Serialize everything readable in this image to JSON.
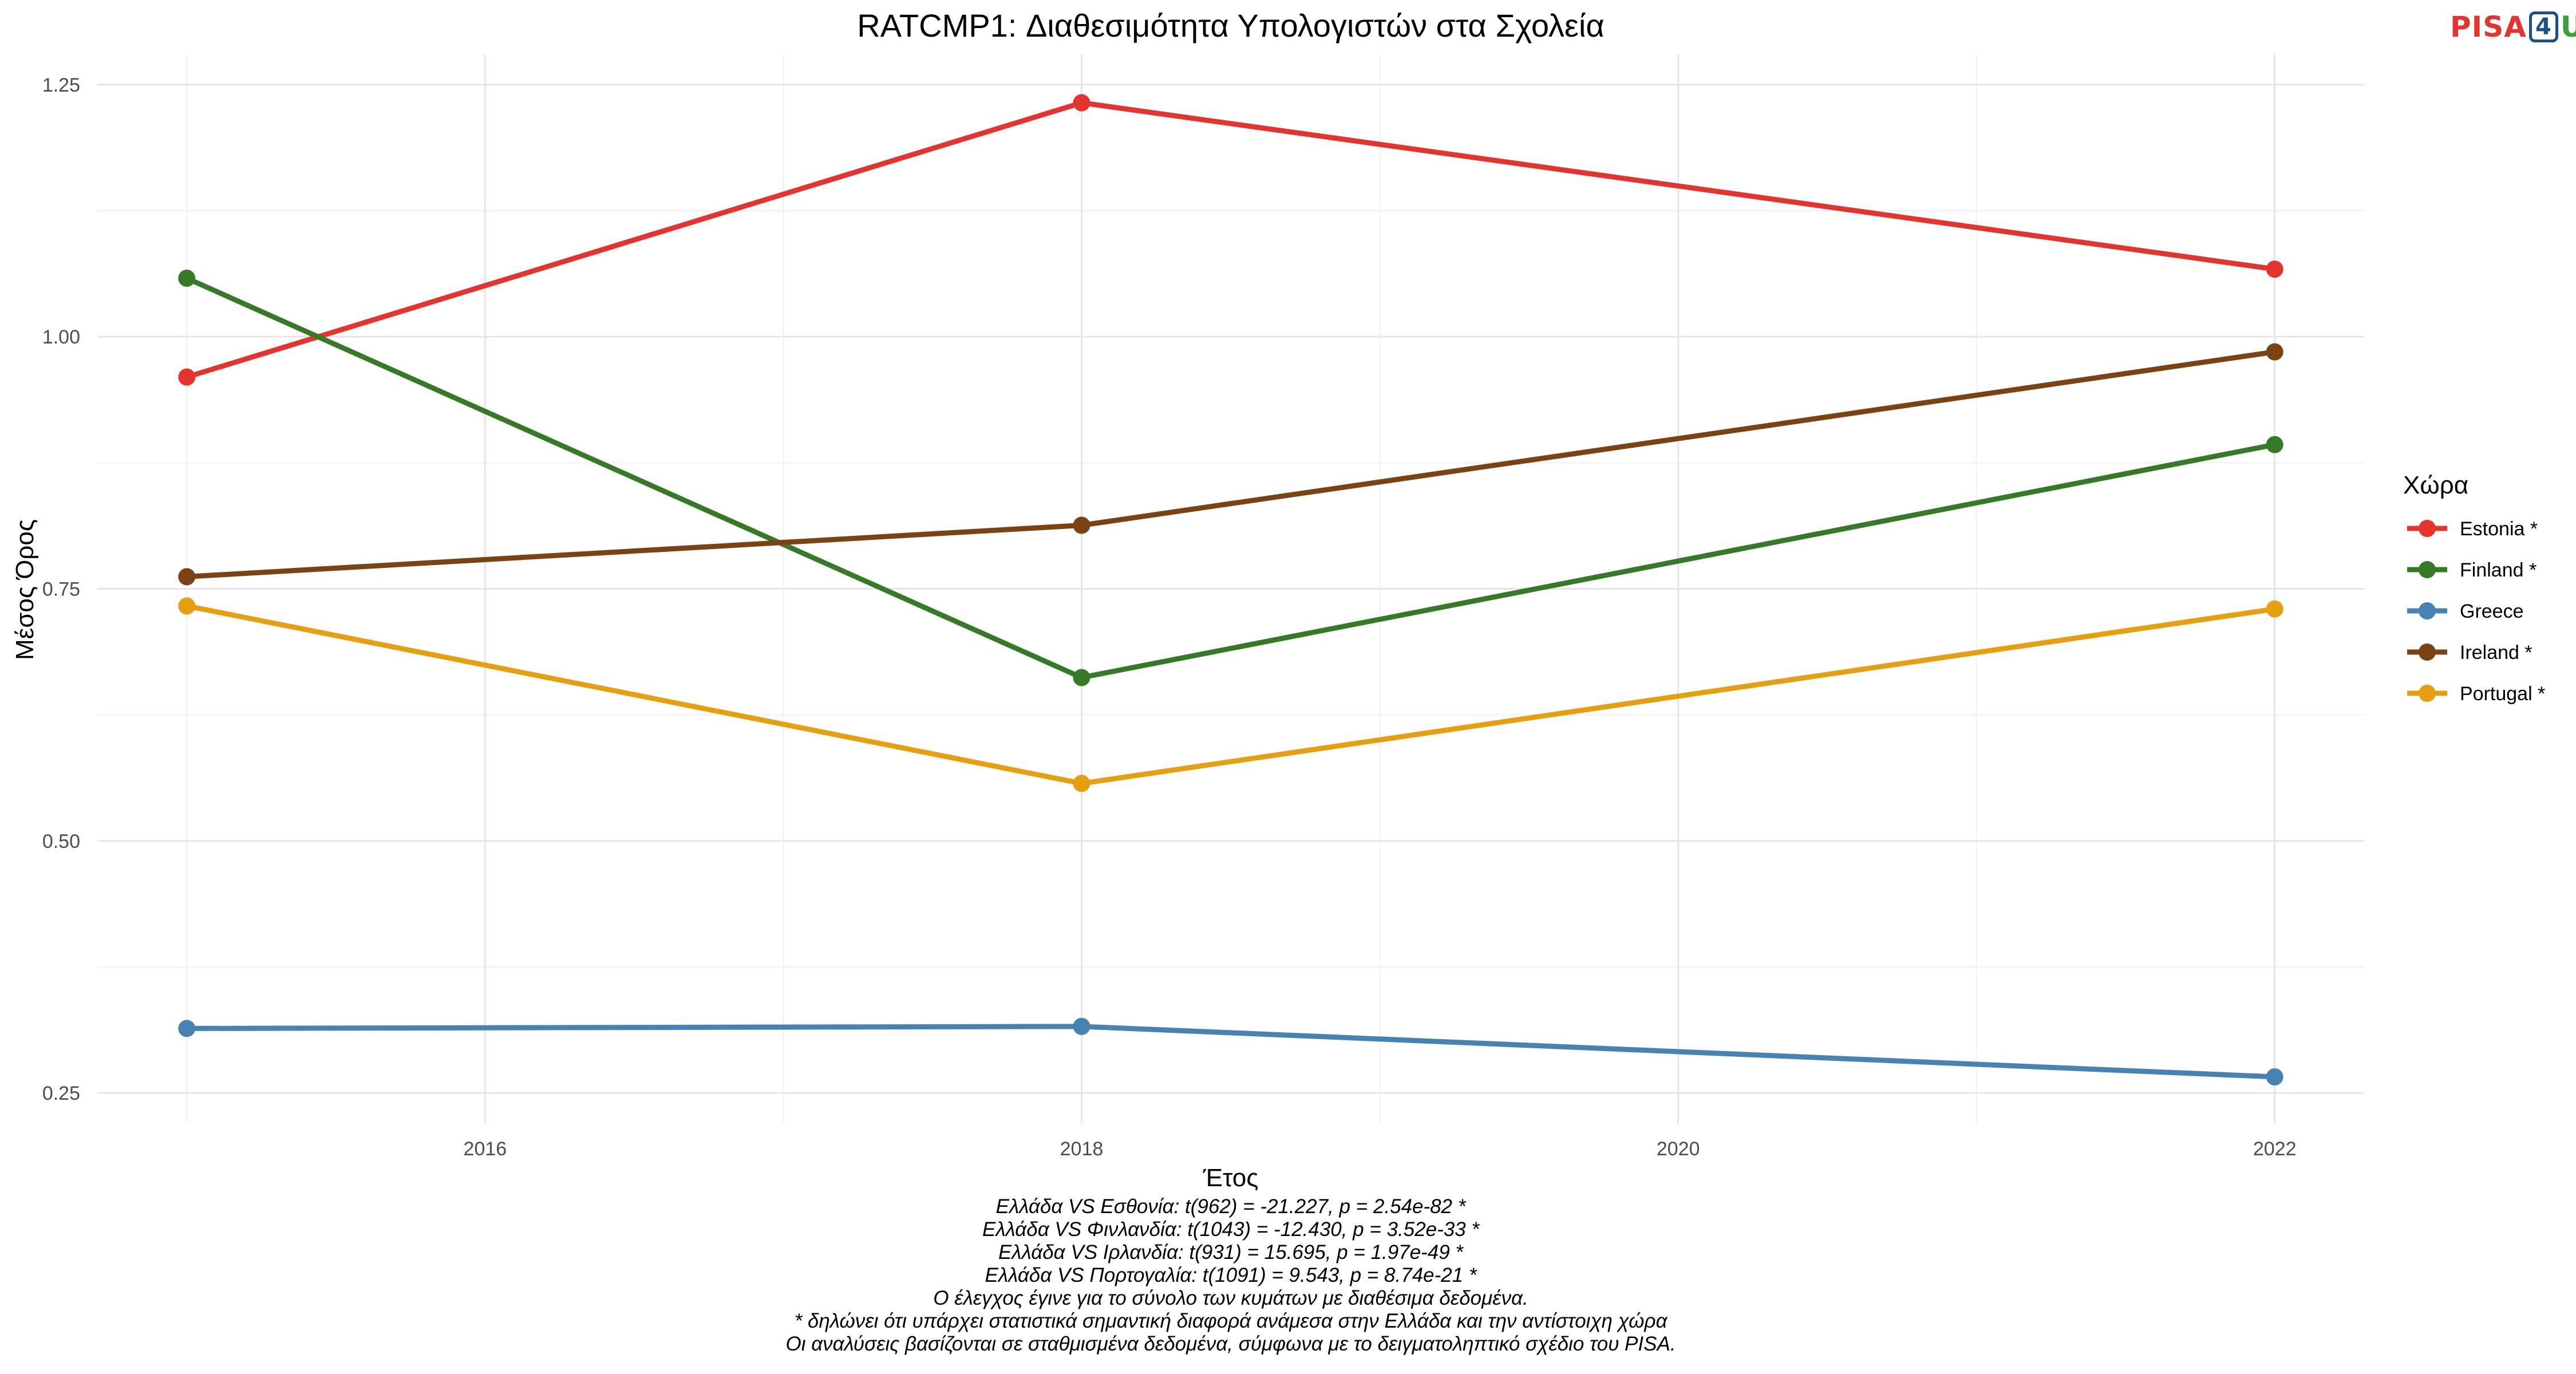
{
  "logo": {
    "part1": "PISA",
    "part2": "4",
    "part3": "U"
  },
  "chart_data": {
    "type": "line",
    "title": "RATCMP1: Διαθεσιμότητα Υπολογιστών στα Σχολεία",
    "xlabel": "Έτος",
    "ylabel": "Μέσος Όρος",
    "xlim": [
      2014.7,
      2022.3
    ],
    "ylim": [
      0.22,
      1.28
    ],
    "xticks": [
      2016,
      2018,
      2020,
      2022
    ],
    "xtick_labels": [
      "2016",
      "2018",
      "2020",
      "2022"
    ],
    "yticks": [
      0.25,
      0.5,
      0.75,
      1.0,
      1.25
    ],
    "ytick_labels": [
      "0.25",
      "0.50",
      "0.75",
      "1.00",
      "1.25"
    ],
    "grid": true,
    "legend_title": "Χώρα",
    "legend_position": "right",
    "x": [
      2015,
      2018,
      2022
    ],
    "series": [
      {
        "name": "Estonia *",
        "color": "#e3342f",
        "values": [
          0.96,
          1.232,
          1.067
        ]
      },
      {
        "name": "Finland *",
        "color": "#357a27",
        "values": [
          1.058,
          0.662,
          0.893
        ]
      },
      {
        "name": "Greece",
        "color": "#4682b4",
        "values": [
          0.314,
          0.316,
          0.266
        ]
      },
      {
        "name": "Ireland *",
        "color": "#7b4314",
        "values": [
          0.762,
          0.813,
          0.985
        ]
      },
      {
        "name": "Portugal *",
        "color": "#e69f11",
        "values": [
          0.733,
          0.557,
          0.73
        ]
      }
    ],
    "caption_lines": [
      "Ελλάδα VS Εσθονία: t(962) = -21.227, p = 2.54e-82 *",
      "Ελλάδα VS Φινλανδία: t(1043) = -12.430, p = 3.52e-33 *",
      "Ελλάδα VS Ιρλανδία: t(931) = 15.695, p = 1.97e-49 *",
      "Ελλάδα VS Πορτογαλία: t(1091) = 9.543, p = 8.74e-21 *",
      "Ο έλεγχος έγινε για το σύνολο των κυμάτων με διαθέσιμα δεδομένα.",
      "* δηλώνει ότι υπάρχει στατιστικά σημαντική διαφορά ανάμεσα στην Ελλάδα και την αντίστοιχη χώρα",
      "Οι αναλύσεις βασίζονται σε σταθμισμένα δεδομένα, σύμφωνα με το δειγματοληπτικό σχέδιο του PISA."
    ]
  }
}
